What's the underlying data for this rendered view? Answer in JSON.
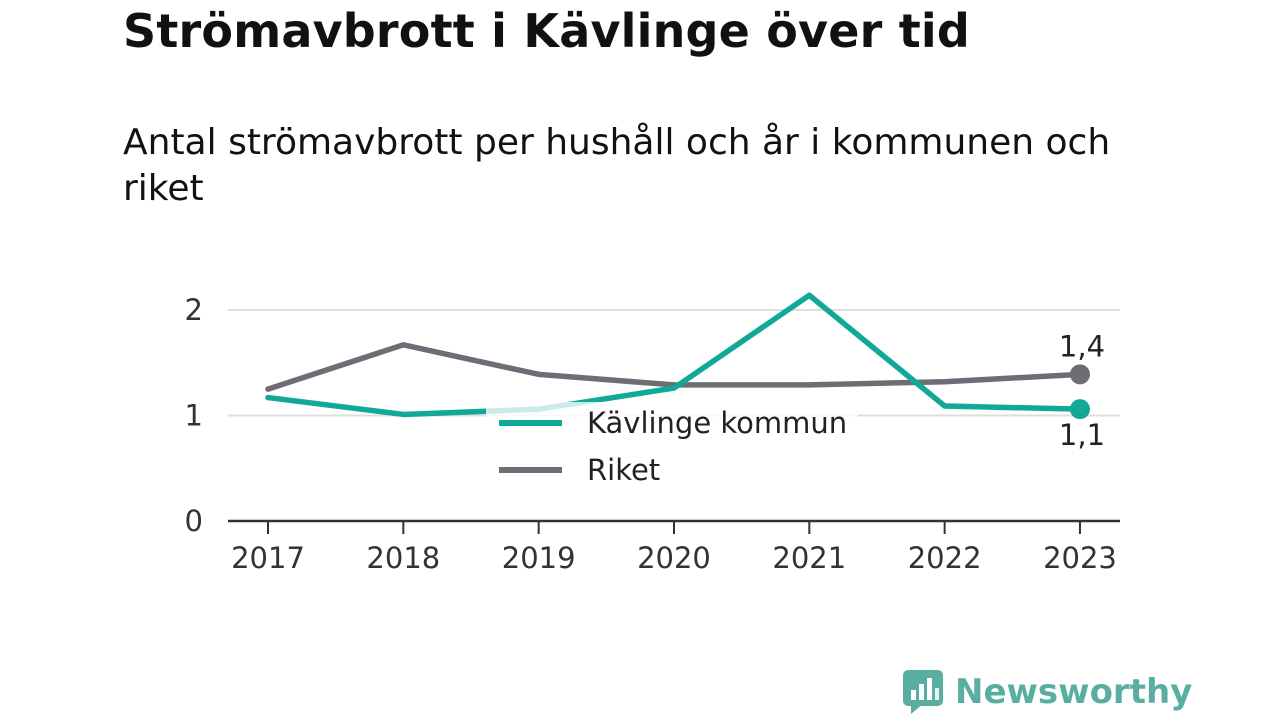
{
  "title": "Strömavbrott i Kävlinge över tid",
  "subtitle": "Antal strömavbrott per hushåll och år i kommunen och riket",
  "brand": {
    "name": "Newsworthy",
    "icon": "bar-chart-speech-bubble-icon",
    "color": "#5aaea1"
  },
  "chart_data": {
    "type": "line",
    "x": [
      "2017",
      "2018",
      "2019",
      "2020",
      "2021",
      "2022",
      "2023"
    ],
    "ylim": [
      0,
      2.3
    ],
    "yticks": [
      0,
      1,
      2
    ],
    "grid": true,
    "legend_position": "center",
    "series": [
      {
        "name": "Kävlinge kommun",
        "color": "#11a898",
        "values": [
          1.17,
          1.01,
          1.06,
          1.26,
          2.14,
          1.09,
          1.06
        ],
        "end_label": "1,1",
        "end_label_position": "below"
      },
      {
        "name": "Riket",
        "color": "#6e6d75",
        "values": [
          1.25,
          1.67,
          1.39,
          1.29,
          1.29,
          1.32,
          1.39
        ],
        "end_label": "1,4",
        "end_label_position": "above"
      }
    ]
  }
}
